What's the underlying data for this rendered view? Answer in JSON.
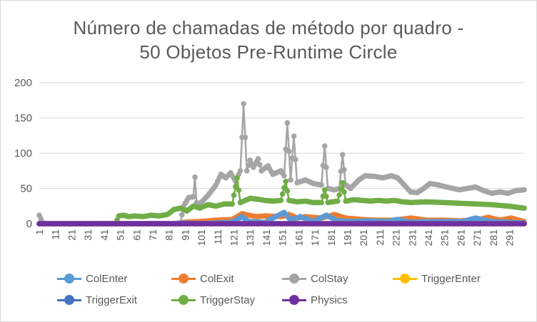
{
  "chart_data": {
    "type": "line",
    "title_line1": "Número de chamadas de método por quadro -",
    "title_line2": "50 Objetos Pre-Runtime Circle",
    "xlabel": "",
    "ylabel": "",
    "ylim": [
      0,
      200
    ],
    "yticks": [
      "0",
      "50",
      "100",
      "150",
      "200"
    ],
    "x_range": [
      1,
      300
    ],
    "xticks": [
      "1",
      "11",
      "21",
      "31",
      "41",
      "51",
      "61",
      "71",
      "81",
      "91",
      "101",
      "111",
      "121",
      "131",
      "141",
      "151",
      "161",
      "171",
      "181",
      "191",
      "201",
      "211",
      "221",
      "231",
      "241",
      "251",
      "261",
      "271",
      "281",
      "291"
    ],
    "grid": true,
    "legend_position": "bottom",
    "series": [
      {
        "name": "ColEnter",
        "color": "#5b9bd5",
        "values": [
          [
            1,
            0
          ],
          [
            85,
            0
          ],
          [
            90,
            1
          ],
          [
            100,
            0
          ],
          [
            110,
            1
          ],
          [
            120,
            2
          ],
          [
            126,
            10
          ],
          [
            130,
            3
          ],
          [
            140,
            2
          ],
          [
            152,
            16
          ],
          [
            156,
            5
          ],
          [
            162,
            10
          ],
          [
            170,
            3
          ],
          [
            178,
            12
          ],
          [
            185,
            4
          ],
          [
            195,
            3
          ],
          [
            205,
            4
          ],
          [
            215,
            3
          ],
          [
            222,
            6
          ],
          [
            230,
            2
          ],
          [
            240,
            3
          ],
          [
            250,
            3
          ],
          [
            262,
            3
          ],
          [
            270,
            8
          ],
          [
            280,
            3
          ],
          [
            290,
            2
          ],
          [
            300,
            1
          ]
        ]
      },
      {
        "name": "ColExit",
        "color": "#ed7d31",
        "values": [
          [
            1,
            0
          ],
          [
            85,
            0
          ],
          [
            90,
            2
          ],
          [
            100,
            3
          ],
          [
            110,
            5
          ],
          [
            120,
            6
          ],
          [
            126,
            14
          ],
          [
            130,
            12
          ],
          [
            135,
            10
          ],
          [
            140,
            11
          ],
          [
            150,
            10
          ],
          [
            155,
            13
          ],
          [
            160,
            8
          ],
          [
            165,
            10
          ],
          [
            170,
            9
          ],
          [
            175,
            8
          ],
          [
            183,
            13
          ],
          [
            190,
            8
          ],
          [
            200,
            6
          ],
          [
            210,
            5
          ],
          [
            220,
            5
          ],
          [
            230,
            8
          ],
          [
            240,
            5
          ],
          [
            250,
            5
          ],
          [
            260,
            4
          ],
          [
            270,
            5
          ],
          [
            278,
            9
          ],
          [
            285,
            5
          ],
          [
            292,
            8
          ],
          [
            300,
            3
          ]
        ]
      },
      {
        "name": "ColStay",
        "color": "#a5a5a5",
        "values": [
          [
            1,
            12
          ],
          [
            3,
            2
          ],
          [
            5,
            0
          ],
          [
            88,
            0
          ],
          [
            90,
            25
          ],
          [
            93,
            37
          ],
          [
            96,
            38
          ],
          [
            97,
            66
          ],
          [
            98,
            30
          ],
          [
            100,
            28
          ],
          [
            105,
            40
          ],
          [
            110,
            55
          ],
          [
            113,
            70
          ],
          [
            116,
            65
          ],
          [
            119,
            72
          ],
          [
            122,
            60
          ],
          [
            125,
            75
          ],
          [
            127,
            170
          ],
          [
            129,
            75
          ],
          [
            131,
            90
          ],
          [
            133,
            80
          ],
          [
            136,
            92
          ],
          [
            138,
            75
          ],
          [
            142,
            82
          ],
          [
            145,
            70
          ],
          [
            150,
            75
          ],
          [
            152,
            68
          ],
          [
            154,
            143
          ],
          [
            156,
            62
          ],
          [
            158,
            124
          ],
          [
            160,
            58
          ],
          [
            165,
            62
          ],
          [
            170,
            57
          ],
          [
            175,
            55
          ],
          [
            177,
            110
          ],
          [
            179,
            50
          ],
          [
            183,
            48
          ],
          [
            186,
            50
          ],
          [
            188,
            98
          ],
          [
            190,
            55
          ],
          [
            193,
            50
          ],
          [
            198,
            62
          ],
          [
            202,
            68
          ],
          [
            208,
            67
          ],
          [
            213,
            65
          ],
          [
            218,
            68
          ],
          [
            222,
            65
          ],
          [
            226,
            55
          ],
          [
            230,
            45
          ],
          [
            234,
            44
          ],
          [
            238,
            50
          ],
          [
            242,
            57
          ],
          [
            247,
            55
          ],
          [
            252,
            52
          ],
          [
            256,
            50
          ],
          [
            260,
            48
          ],
          [
            265,
            50
          ],
          [
            270,
            52
          ],
          [
            275,
            47
          ],
          [
            280,
            43
          ],
          [
            285,
            45
          ],
          [
            290,
            43
          ],
          [
            295,
            47
          ],
          [
            300,
            48
          ]
        ]
      },
      {
        "name": "TriggerEnter",
        "color": "#ffc000",
        "values": [
          [
            1,
            0
          ],
          [
            300,
            0
          ]
        ]
      },
      {
        "name": "TriggerExit",
        "color": "#4472c4",
        "values": [
          [
            1,
            0
          ],
          [
            300,
            0
          ]
        ]
      },
      {
        "name": "TriggerStay",
        "color": "#70ad47",
        "values": [
          [
            1,
            0
          ],
          [
            48,
            0
          ],
          [
            50,
            11
          ],
          [
            53,
            12
          ],
          [
            56,
            10
          ],
          [
            60,
            11
          ],
          [
            65,
            10
          ],
          [
            70,
            12
          ],
          [
            75,
            11
          ],
          [
            80,
            13
          ],
          [
            84,
            20
          ],
          [
            88,
            22
          ],
          [
            92,
            18
          ],
          [
            96,
            25
          ],
          [
            100,
            22
          ],
          [
            105,
            27
          ],
          [
            110,
            25
          ],
          [
            115,
            28
          ],
          [
            120,
            28
          ],
          [
            123,
            65
          ],
          [
            125,
            30
          ],
          [
            128,
            33
          ],
          [
            131,
            36
          ],
          [
            135,
            35
          ],
          [
            140,
            33
          ],
          [
            145,
            32
          ],
          [
            150,
            33
          ],
          [
            153,
            60
          ],
          [
            155,
            33
          ],
          [
            160,
            31
          ],
          [
            165,
            32
          ],
          [
            170,
            30
          ],
          [
            175,
            30
          ],
          [
            177,
            48
          ],
          [
            179,
            30
          ],
          [
            185,
            32
          ],
          [
            188,
            58
          ],
          [
            190,
            32
          ],
          [
            195,
            34
          ],
          [
            200,
            33
          ],
          [
            205,
            32
          ],
          [
            210,
            33
          ],
          [
            215,
            32
          ],
          [
            220,
            33
          ],
          [
            225,
            31
          ],
          [
            230,
            30
          ],
          [
            240,
            31
          ],
          [
            250,
            30
          ],
          [
            260,
            29
          ],
          [
            270,
            28
          ],
          [
            280,
            27
          ],
          [
            290,
            25
          ],
          [
            300,
            22
          ]
        ]
      },
      {
        "name": "Physics",
        "color": "#7030a0",
        "values": [
          [
            1,
            0
          ],
          [
            300,
            0
          ]
        ]
      }
    ]
  }
}
